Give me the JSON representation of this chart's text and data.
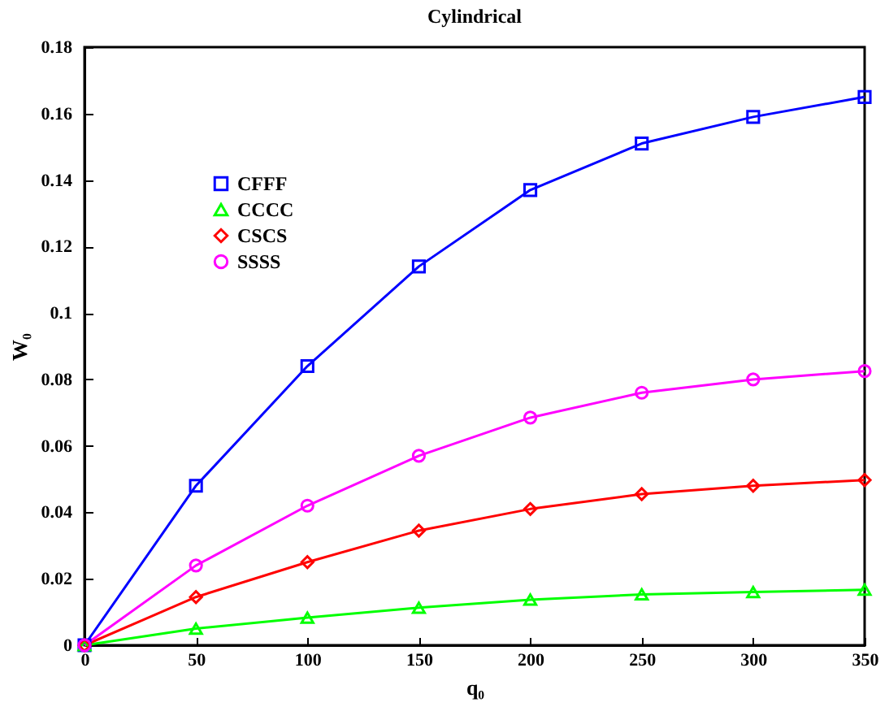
{
  "chart_data": {
    "type": "line",
    "title": "Cylindrical",
    "xlabel": "q₀",
    "ylabel": "W₀",
    "x": [
      0,
      50,
      100,
      150,
      200,
      250,
      300,
      350
    ],
    "series": [
      {
        "name": "CFFF",
        "color": "#0000ff",
        "marker": "square",
        "values": [
          0,
          0.048,
          0.084,
          0.114,
          0.137,
          0.151,
          0.159,
          0.165
        ]
      },
      {
        "name": "CCCC",
        "color": "#00ff00",
        "marker": "triangle",
        "values": [
          0,
          0.005,
          0.0083,
          0.0113,
          0.0137,
          0.0153,
          0.016,
          0.0167
        ]
      },
      {
        "name": "CSCS",
        "color": "#ff0000",
        "marker": "diamond",
        "values": [
          0,
          0.0145,
          0.025,
          0.0345,
          0.041,
          0.0455,
          0.048,
          0.0497
        ]
      },
      {
        "name": "SSSS",
        "color": "#ff00ff",
        "marker": "circle",
        "values": [
          0,
          0.024,
          0.042,
          0.057,
          0.0685,
          0.076,
          0.08,
          0.0825
        ]
      }
    ],
    "xlim": [
      0,
      350
    ],
    "xticks": [
      0,
      50,
      100,
      150,
      200,
      250,
      300,
      350
    ],
    "ylim": [
      0,
      0.18
    ],
    "yticks": [
      0,
      0.02,
      0.04,
      0.06,
      0.08,
      0.1,
      0.12,
      0.14,
      0.16,
      0.18
    ],
    "grid": false,
    "legend": "top left",
    "line_style": "solid"
  }
}
